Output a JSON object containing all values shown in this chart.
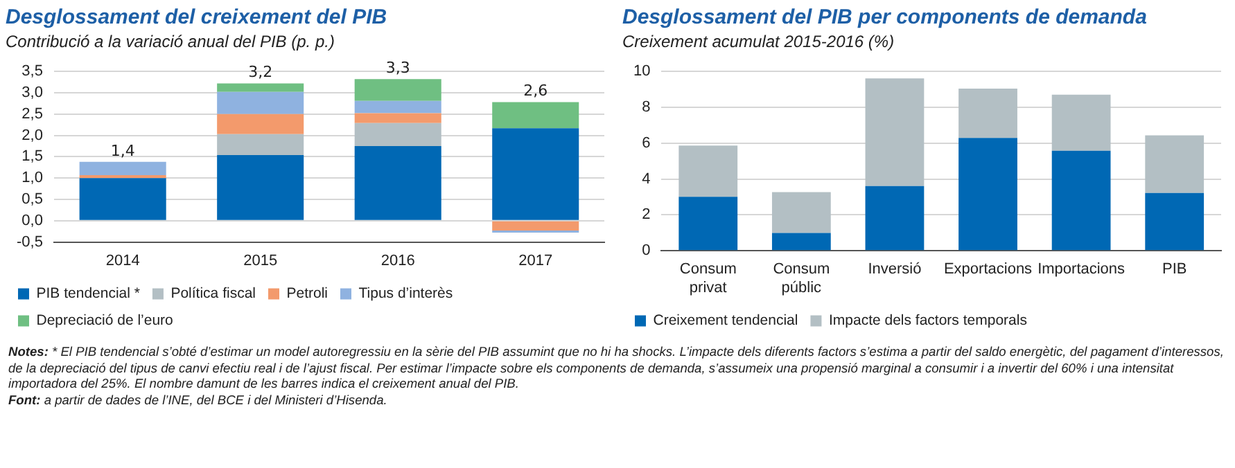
{
  "chart_data": [
    {
      "type": "bar",
      "title": "Desglossament del creixement del PIB",
      "subtitle": "Contribució a la variació anual del PIB (p. p.)",
      "categories": [
        "2014",
        "2015",
        "2016",
        "2017"
      ],
      "stacked": true,
      "legend": "bottom",
      "grid": "y",
      "ylim": [
        -0.5,
        3.5
      ],
      "yticks": [
        {
          "value": -0.5,
          "label": "-0,5"
        },
        {
          "value": 0,
          "label": "0,0"
        },
        {
          "value": 0.5,
          "label": "0,5"
        },
        {
          "value": 1,
          "label": "1,0"
        },
        {
          "value": 1.5,
          "label": "1,5"
        },
        {
          "value": 2,
          "label": "2,0"
        },
        {
          "value": 2.5,
          "label": "2,5"
        },
        {
          "value": 3,
          "label": "3,0"
        },
        {
          "value": 3.5,
          "label": "3,5"
        }
      ],
      "series": [
        {
          "name": "PIB tendencial *",
          "color": "#0068b4",
          "values": [
            1.0,
            1.54,
            1.75,
            2.17
          ]
        },
        {
          "name": "Política fiscal",
          "color": "#b3bfc4",
          "values": [
            0,
            0.49,
            0.54,
            0
          ]
        },
        {
          "name": "Petroli",
          "color": "#f39a6c",
          "values": [
            0.07,
            0.47,
            0.23,
            -0.23
          ]
        },
        {
          "name": "Tipus d’interès",
          "color": "#8fb2e0",
          "values": [
            0.31,
            0.52,
            0.29,
            -0.05
          ]
        },
        {
          "name": "Depreciació de l’euro",
          "color": "#6fbf82",
          "values": [
            0,
            0.2,
            0.51,
            0.61
          ]
        }
      ],
      "totals": [
        "1,4",
        "3,2",
        "3,3",
        "2,6"
      ],
      "annotations": [
        "Notes: * El PIB tendencial s’obté d’estimar un model autoregressiu en la sèrie del PIB assumint que no hi ha shocks. L’impacte dels diferents factors s’estima a partir del saldo energètic, del pagament d’interessos, de la depreciació del tipus de canvi efectiu real i de l’ajust fiscal. Per estimar l’impacte sobre els components de demanda, s’assumeix una propensió marginal a consumir i a invertir del 60% i una intensitat importadora del 25%. El nombre damunt de les barres indica el creixement anual del PIB.",
        "Font: a partir de dades de l’INE, del BCE i del Ministeri d’Hisenda."
      ]
    },
    {
      "type": "bar",
      "title": "Desglossament del PIB per components de demanda",
      "subtitle": "Creixement acumulat 2015-2016 (%)",
      "categories": [
        "Consum privat",
        "Consum públic",
        "Inversió",
        "Exportacions",
        "Importacions",
        "PIB"
      ],
      "stacked": true,
      "legend": "bottom",
      "grid": "y",
      "ylim": [
        0,
        10
      ],
      "yticks": [
        0,
        2,
        4,
        6,
        8,
        10
      ],
      "series": [
        {
          "name": "Creixement tendencial",
          "color": "#0068b4",
          "values": [
            3.01,
            0.99,
            3.61,
            6.29,
            5.58,
            3.22
          ]
        },
        {
          "name": "Impacte dels factors temporals",
          "color": "#b3bfc4",
          "values": [
            2.86,
            2.28,
            6.0,
            2.75,
            3.12,
            3.22
          ]
        }
      ]
    }
  ]
}
